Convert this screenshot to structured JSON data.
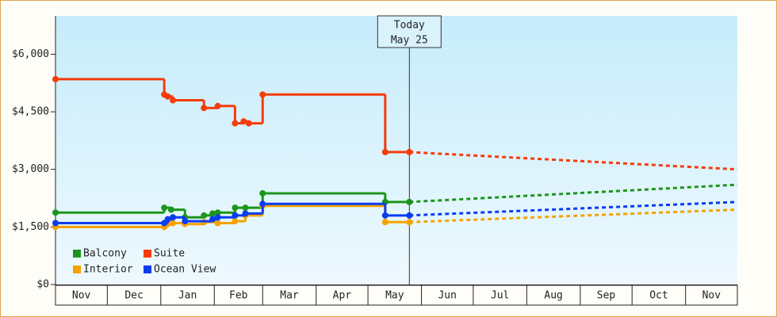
{
  "chart_data": {
    "type": "step-line",
    "xlim": [
      0,
      395
    ],
    "xticks": [
      {
        "value": 0,
        "label": "Nov"
      },
      {
        "value": 30,
        "label": "Dec"
      },
      {
        "value": 61,
        "label": "Jan"
      },
      {
        "value": 92,
        "label": "Feb"
      },
      {
        "value": 120,
        "label": "Mar"
      },
      {
        "value": 151,
        "label": "Apr"
      },
      {
        "value": 181,
        "label": "May"
      },
      {
        "value": 212,
        "label": "Jun"
      },
      {
        "value": 242,
        "label": "Jul"
      },
      {
        "value": 273,
        "label": "Aug"
      },
      {
        "value": 304,
        "label": "Sep"
      },
      {
        "value": 334,
        "label": "Oct"
      },
      {
        "value": 365,
        "label": "Nov"
      }
    ],
    "ylim": [
      0,
      7000
    ],
    "yticks": [
      {
        "value": 0,
        "label": "$0"
      },
      {
        "value": 1500,
        "label": "$1,500"
      },
      {
        "value": 3000,
        "label": "$3,000"
      },
      {
        "value": 4500,
        "label": "$4,500"
      },
      {
        "value": 6000,
        "label": "$6,000"
      }
    ],
    "today": {
      "x": 205,
      "title": "Today",
      "date": "May 25"
    },
    "series": [
      {
        "name": "Balcony",
        "color": "#1b961b",
        "x": [
          0,
          63,
          67,
          75,
          86,
          91,
          94,
          104,
          110,
          120,
          191,
          205
        ],
        "values": [
          1875,
          2000,
          1950,
          1750,
          1800,
          1850,
          1875,
          2000,
          2000,
          2375,
          2150,
          2150
        ],
        "forecast": {
          "x": [
            205,
            395
          ],
          "values": [
            2150,
            2600
          ]
        }
      },
      {
        "name": "Suite",
        "color": "#f43c0a",
        "x": [
          0,
          63,
          65,
          68,
          86,
          94,
          104,
          109,
          112,
          120,
          191,
          205
        ],
        "values": [
          5350,
          4950,
          4900,
          4800,
          4600,
          4650,
          4200,
          4250,
          4200,
          4950,
          3450,
          3450
        ],
        "forecast": {
          "x": [
            205,
            395
          ],
          "values": [
            3450,
            3000
          ]
        }
      },
      {
        "name": "Interior",
        "color": "#f5a200",
        "x": [
          0,
          63,
          65,
          68,
          75,
          86,
          94,
          104,
          110,
          120,
          191,
          205
        ],
        "values": [
          1500,
          1500,
          1575,
          1600,
          1575,
          1625,
          1600,
          1650,
          1800,
          2050,
          1625,
          1625
        ],
        "forecast": {
          "x": [
            205,
            395
          ],
          "values": [
            1625,
            1950
          ]
        }
      },
      {
        "name": "Ocean View",
        "color": "#0b3cf0",
        "x": [
          0,
          63,
          65,
          68,
          75,
          91,
          94,
          104,
          110,
          120,
          191,
          205
        ],
        "values": [
          1600,
          1600,
          1700,
          1750,
          1650,
          1700,
          1750,
          1800,
          1850,
          2100,
          1800,
          1800
        ],
        "forecast": {
          "x": [
            205,
            395
          ],
          "values": [
            1800,
            2150
          ]
        }
      }
    ]
  }
}
